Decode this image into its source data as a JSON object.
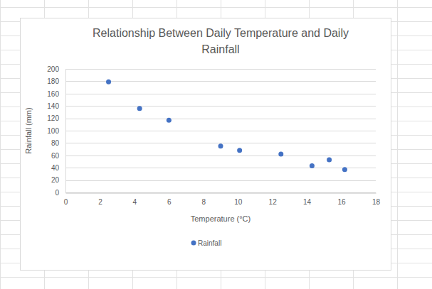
{
  "chart_data": {
    "type": "scatter",
    "title": "Relationship Between Daily Temperature and Daily Rainfall",
    "x_label": "Temperature (°C)",
    "y_label": "Rainfall (mm)",
    "x": [
      2.5,
      4.3,
      6,
      9,
      10.1,
      12.5,
      14.3,
      15.3,
      16.2
    ],
    "series": [
      {
        "name": "Rainfall",
        "color": "#4472c4",
        "marker": "circle",
        "values": [
          179,
          136,
          117,
          75,
          68,
          62,
          43,
          53,
          37
        ]
      }
    ],
    "xlim": [
      0,
      18
    ],
    "xticks": [
      0,
      2,
      4,
      6,
      8,
      10,
      12,
      14,
      16,
      18
    ],
    "ylim": [
      0,
      200
    ],
    "yticks": [
      0,
      20,
      40,
      60,
      80,
      100,
      120,
      140,
      160,
      180,
      200
    ],
    "grid": true,
    "legend": "bottom"
  }
}
